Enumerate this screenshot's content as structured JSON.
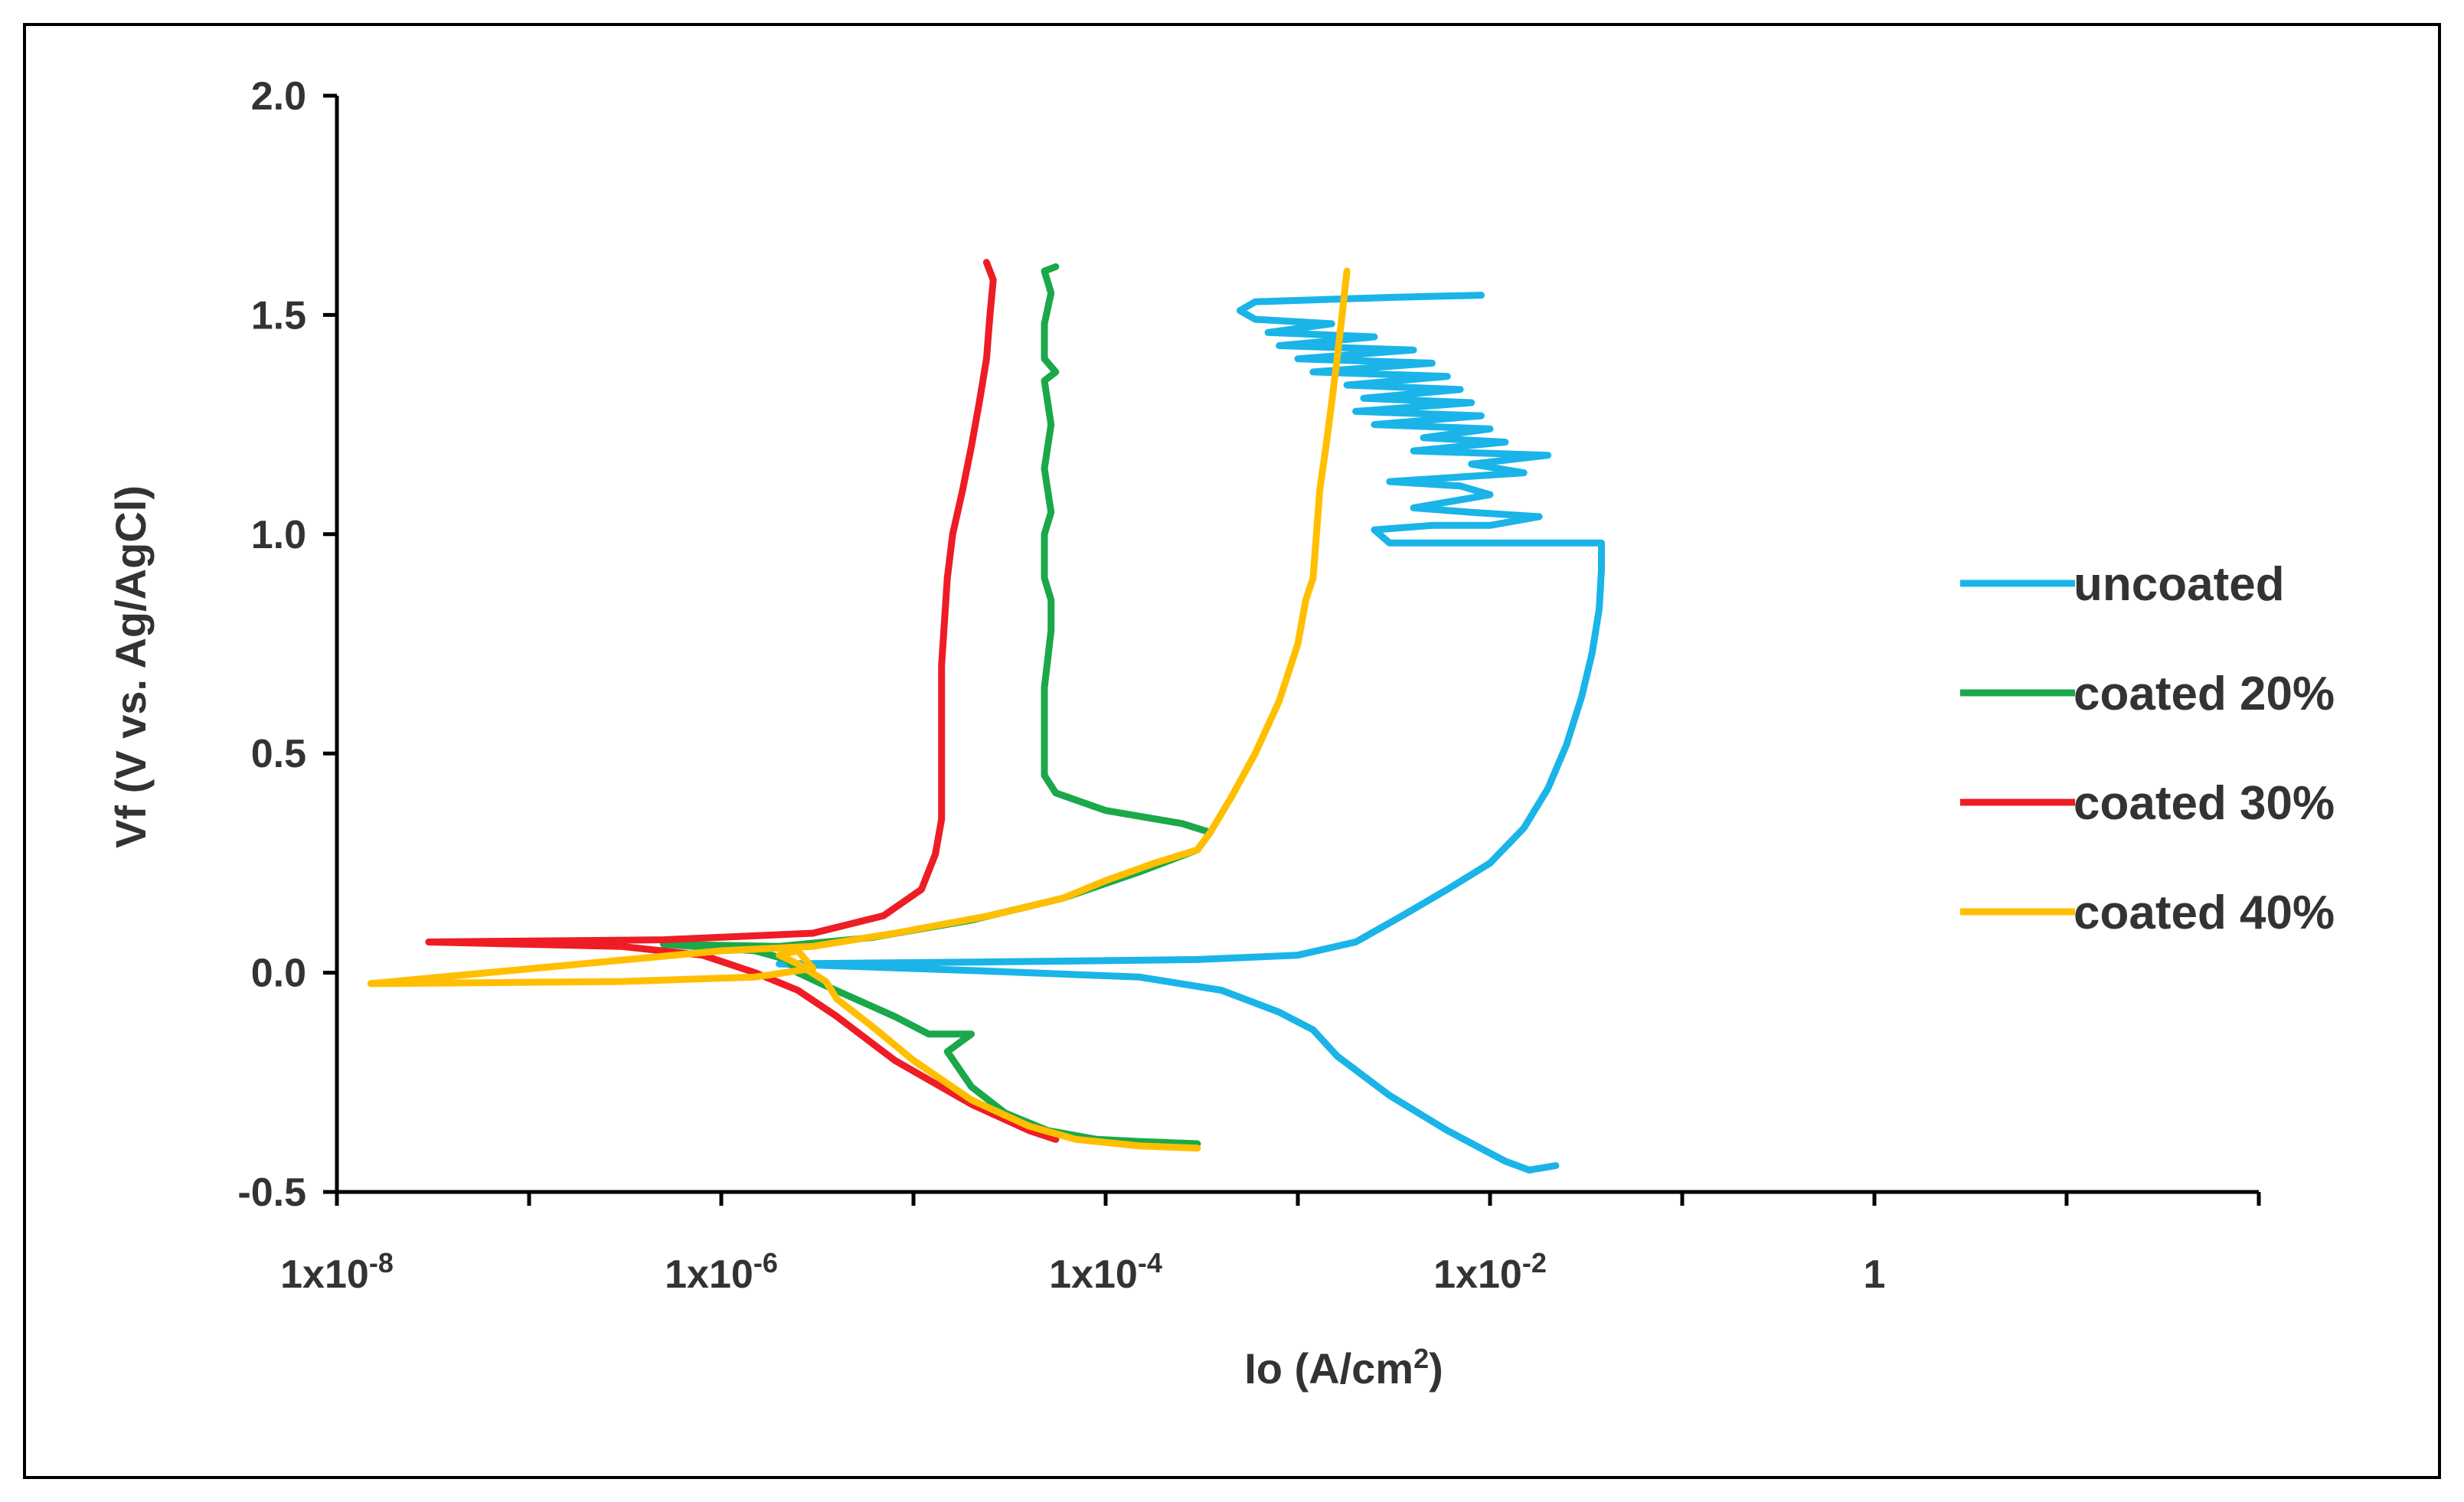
{
  "chart_data": {
    "type": "line",
    "title": "",
    "xlabel": "Io (A/cm²)",
    "xlabel_base": "Io (A/cm",
    "xlabel_sup": "2",
    "xlabel_end": ")",
    "ylabel": "Vf (V vs. Ag/AgCl)",
    "xscale": "log",
    "xlim": [
      1e-08,
      100
    ],
    "ylim": [
      -0.5,
      2.0
    ],
    "grid": false,
    "legend_position": "right",
    "x_ticks": [
      {
        "value": 1e-08,
        "base": "1x10",
        "exp": "-8"
      },
      {
        "value": 1e-06,
        "base": "1x10",
        "exp": "-6"
      },
      {
        "value": 0.0001,
        "base": "1x10",
        "exp": "-4"
      },
      {
        "value": 0.01,
        "base": "1x10",
        "exp": "-2"
      },
      {
        "value": 1,
        "base": "1",
        "exp": ""
      }
    ],
    "y_ticks": [
      {
        "value": 2.0,
        "label": "2.0"
      },
      {
        "value": 1.5,
        "label": "1.5"
      },
      {
        "value": 1.0,
        "label": "1.0"
      },
      {
        "value": 0.5,
        "label": "0.5"
      },
      {
        "value": 0.0,
        "label": "0.0"
      },
      {
        "value": -0.5,
        "label": "-0.5"
      }
    ],
    "series": [
      {
        "name": "uncoated",
        "color": "#1ab4e8",
        "points": [
          [
            0.022,
            -0.44
          ],
          [
            0.016,
            -0.45
          ],
          [
            0.012,
            -0.43
          ],
          [
            0.006,
            -0.36
          ],
          [
            0.003,
            -0.28
          ],
          [
            0.0016,
            -0.19
          ],
          [
            0.0012,
            -0.13
          ],
          [
            0.0008,
            -0.09
          ],
          [
            0.0004,
            -0.04
          ],
          [
            0.00015,
            -0.01
          ],
          [
            2e-05,
            0.005
          ],
          [
            2e-06,
            0.02
          ],
          [
            3e-05,
            0.025
          ],
          [
            0.0003,
            0.03
          ],
          [
            0.001,
            0.04
          ],
          [
            0.002,
            0.07
          ],
          [
            0.0035,
            0.13
          ],
          [
            0.006,
            0.19
          ],
          [
            0.01,
            0.25
          ],
          [
            0.015,
            0.33
          ],
          [
            0.02,
            0.42
          ],
          [
            0.025,
            0.52
          ],
          [
            0.03,
            0.63
          ],
          [
            0.034,
            0.73
          ],
          [
            0.037,
            0.83
          ],
          [
            0.038,
            0.92
          ],
          [
            0.038,
            0.98
          ],
          [
            0.003,
            0.98
          ],
          [
            0.0025,
            1.01
          ],
          [
            0.005,
            1.02
          ],
          [
            0.01,
            1.02
          ],
          [
            0.018,
            1.04
          ],
          [
            0.008,
            1.05
          ],
          [
            0.004,
            1.06
          ],
          [
            0.01,
            1.09
          ],
          [
            0.007,
            1.11
          ],
          [
            0.003,
            1.12
          ],
          [
            0.015,
            1.14
          ],
          [
            0.008,
            1.16
          ],
          [
            0.02,
            1.18
          ],
          [
            0.004,
            1.19
          ],
          [
            0.012,
            1.21
          ],
          [
            0.0045,
            1.22
          ],
          [
            0.01,
            1.24
          ],
          [
            0.0025,
            1.25
          ],
          [
            0.009,
            1.27
          ],
          [
            0.002,
            1.28
          ],
          [
            0.008,
            1.3
          ],
          [
            0.0022,
            1.31
          ],
          [
            0.007,
            1.33
          ],
          [
            0.0018,
            1.34
          ],
          [
            0.006,
            1.36
          ],
          [
            0.0012,
            1.37
          ],
          [
            0.005,
            1.39
          ],
          [
            0.001,
            1.4
          ],
          [
            0.004,
            1.42
          ],
          [
            0.0008,
            1.43
          ],
          [
            0.0025,
            1.45
          ],
          [
            0.0007,
            1.46
          ],
          [
            0.0015,
            1.48
          ],
          [
            0.0006,
            1.49
          ],
          [
            0.0005,
            1.51
          ],
          [
            0.0006,
            1.53
          ],
          [
            0.003,
            1.54
          ],
          [
            0.009,
            1.545
          ]
        ]
      },
      {
        "name": "coated 20%",
        "color": "#1aa84a",
        "points": [
          [
            0.0003,
            -0.39
          ],
          [
            0.00015,
            -0.385
          ],
          [
            9e-05,
            -0.38
          ],
          [
            5e-05,
            -0.36
          ],
          [
            3e-05,
            -0.32
          ],
          [
            2e-05,
            -0.26
          ],
          [
            1.5e-05,
            -0.18
          ],
          [
            2e-05,
            -0.14
          ],
          [
            1.2e-05,
            -0.14
          ],
          [
            8e-06,
            -0.1
          ],
          [
            5e-06,
            -0.06
          ],
          [
            3.5e-06,
            -0.03
          ],
          [
            2.5e-06,
            0.0
          ],
          [
            2.2e-06,
            0.03
          ],
          [
            1.5e-06,
            0.05
          ],
          [
            5e-07,
            0.065
          ],
          [
            2e-06,
            0.06
          ],
          [
            6e-06,
            0.08
          ],
          [
            2e-05,
            0.12
          ],
          [
            6e-05,
            0.17
          ],
          [
            0.00015,
            0.23
          ],
          [
            0.0003,
            0.28
          ],
          [
            0.00035,
            0.32
          ],
          [
            0.00025,
            0.34
          ],
          [
            0.0001,
            0.37
          ],
          [
            5.5e-05,
            0.41
          ],
          [
            4.8e-05,
            0.45
          ],
          [
            4.8e-05,
            0.55
          ],
          [
            4.8e-05,
            0.65
          ],
          [
            5.2e-05,
            0.78
          ],
          [
            5.2e-05,
            0.85
          ],
          [
            4.8e-05,
            0.9
          ],
          [
            4.8e-05,
            1.0
          ],
          [
            5.2e-05,
            1.05
          ],
          [
            4.8e-05,
            1.15
          ],
          [
            5.2e-05,
            1.25
          ],
          [
            4.8e-05,
            1.35
          ],
          [
            5.5e-05,
            1.37
          ],
          [
            4.8e-05,
            1.4
          ],
          [
            4.8e-05,
            1.48
          ],
          [
            5.2e-05,
            1.55
          ],
          [
            4.8e-05,
            1.6
          ],
          [
            5.5e-05,
            1.61
          ]
        ]
      },
      {
        "name": "coated 30%",
        "color": "#ee1c24",
        "points": [
          [
            5.5e-05,
            -0.38
          ],
          [
            4e-05,
            -0.36
          ],
          [
            2e-05,
            -0.3
          ],
          [
            8e-06,
            -0.2
          ],
          [
            4e-06,
            -0.1
          ],
          [
            2.5e-06,
            -0.04
          ],
          [
            1.5e-06,
            0.0
          ],
          [
            8e-07,
            0.04
          ],
          [
            3e-07,
            0.06
          ],
          [
            3e-08,
            0.07
          ],
          [
            5e-07,
            0.075
          ],
          [
            3e-06,
            0.09
          ],
          [
            7e-06,
            0.13
          ],
          [
            1.1e-05,
            0.19
          ],
          [
            1.3e-05,
            0.27
          ],
          [
            1.4e-05,
            0.35
          ],
          [
            1.4e-05,
            0.5
          ],
          [
            1.4e-05,
            0.7
          ],
          [
            1.5e-05,
            0.9
          ],
          [
            1.6e-05,
            1.0
          ],
          [
            1.8e-05,
            1.1
          ],
          [
            2e-05,
            1.2
          ],
          [
            2.2e-05,
            1.3
          ],
          [
            2.4e-05,
            1.4
          ],
          [
            2.5e-05,
            1.5
          ],
          [
            2.6e-05,
            1.58
          ],
          [
            2.4e-05,
            1.62
          ]
        ]
      },
      {
        "name": "coated 40%",
        "color": "#ffbf00",
        "points": [
          [
            0.0003,
            -0.4
          ],
          [
            0.00015,
            -0.395
          ],
          [
            7e-05,
            -0.38
          ],
          [
            4e-05,
            -0.35
          ],
          [
            2e-05,
            -0.29
          ],
          [
            1e-05,
            -0.2
          ],
          [
            6e-06,
            -0.12
          ],
          [
            4e-06,
            -0.06
          ],
          [
            3.5e-06,
            -0.02
          ],
          [
            2.5e-06,
            0.02
          ],
          [
            2e-06,
            0.04
          ],
          [
            2.5e-06,
            0.05
          ],
          [
            3e-06,
            0.01
          ],
          [
            1.5e-06,
            -0.01
          ],
          [
            3e-07,
            -0.02
          ],
          [
            1.5e-08,
            -0.025
          ],
          [
            1e-06,
            0.05
          ],
          [
            3e-06,
            0.06
          ],
          [
            8e-06,
            0.09
          ],
          [
            2.5e-05,
            0.13
          ],
          [
            6e-05,
            0.17
          ],
          [
            0.0001,
            0.21
          ],
          [
            0.00018,
            0.25
          ],
          [
            0.0003,
            0.28
          ],
          [
            0.00035,
            0.32
          ],
          [
            0.00045,
            0.4
          ],
          [
            0.0006,
            0.5
          ],
          [
            0.0008,
            0.62
          ],
          [
            0.001,
            0.75
          ],
          [
            0.0011,
            0.85
          ],
          [
            0.0012,
            0.9
          ],
          [
            0.00125,
            1.0
          ],
          [
            0.0013,
            1.1
          ],
          [
            0.0014,
            1.2
          ],
          [
            0.0015,
            1.3
          ],
          [
            0.0016,
            1.4
          ],
          [
            0.0017,
            1.5
          ],
          [
            0.0018,
            1.6
          ]
        ]
      }
    ]
  }
}
